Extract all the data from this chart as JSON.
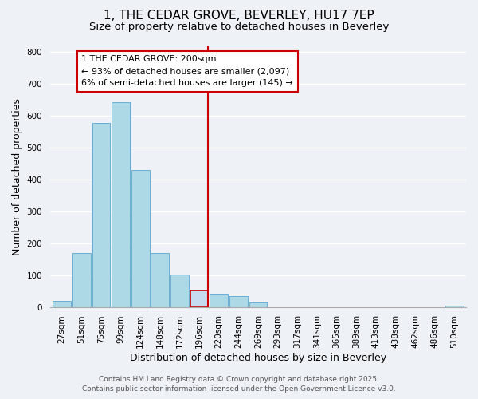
{
  "title": "1, THE CEDAR GROVE, BEVERLEY, HU17 7EP",
  "subtitle": "Size of property relative to detached houses in Beverley",
  "xlabel": "Distribution of detached houses by size in Beverley",
  "ylabel": "Number of detached properties",
  "bar_labels": [
    "27sqm",
    "51sqm",
    "75sqm",
    "99sqm",
    "124sqm",
    "148sqm",
    "172sqm",
    "196sqm",
    "220sqm",
    "244sqm",
    "269sqm",
    "293sqm",
    "317sqm",
    "341sqm",
    "365sqm",
    "389sqm",
    "413sqm",
    "438sqm",
    "462sqm",
    "486sqm",
    "510sqm"
  ],
  "bar_values": [
    20,
    170,
    578,
    643,
    430,
    170,
    103,
    52,
    40,
    33,
    13,
    0,
    0,
    0,
    0,
    0,
    0,
    0,
    0,
    0,
    3
  ],
  "bar_color": "#add8e6",
  "bar_edgecolor": "#6baed6",
  "highlight_index": 7,
  "highlight_bar_color": "#c6dbef",
  "highlight_bar_edgecolor": "#cc0000",
  "vline_color": "#cc0000",
  "ylim": [
    0,
    820
  ],
  "yticks": [
    0,
    100,
    200,
    300,
    400,
    500,
    600,
    700,
    800
  ],
  "annotation_title": "1 THE CEDAR GROVE: 200sqm",
  "annotation_line1": "← 93% of detached houses are smaller (2,097)",
  "annotation_line2": "6% of semi-detached houses are larger (145) →",
  "footer_line1": "Contains HM Land Registry data © Crown copyright and database right 2025.",
  "footer_line2": "Contains public sector information licensed under the Open Government Licence v3.0.",
  "bg_color": "#eef2f7",
  "grid_color": "#ffffff",
  "title_fontsize": 11,
  "subtitle_fontsize": 9.5,
  "axis_label_fontsize": 9,
  "tick_fontsize": 7.5,
  "annotation_fontsize": 8,
  "footer_fontsize": 6.5
}
